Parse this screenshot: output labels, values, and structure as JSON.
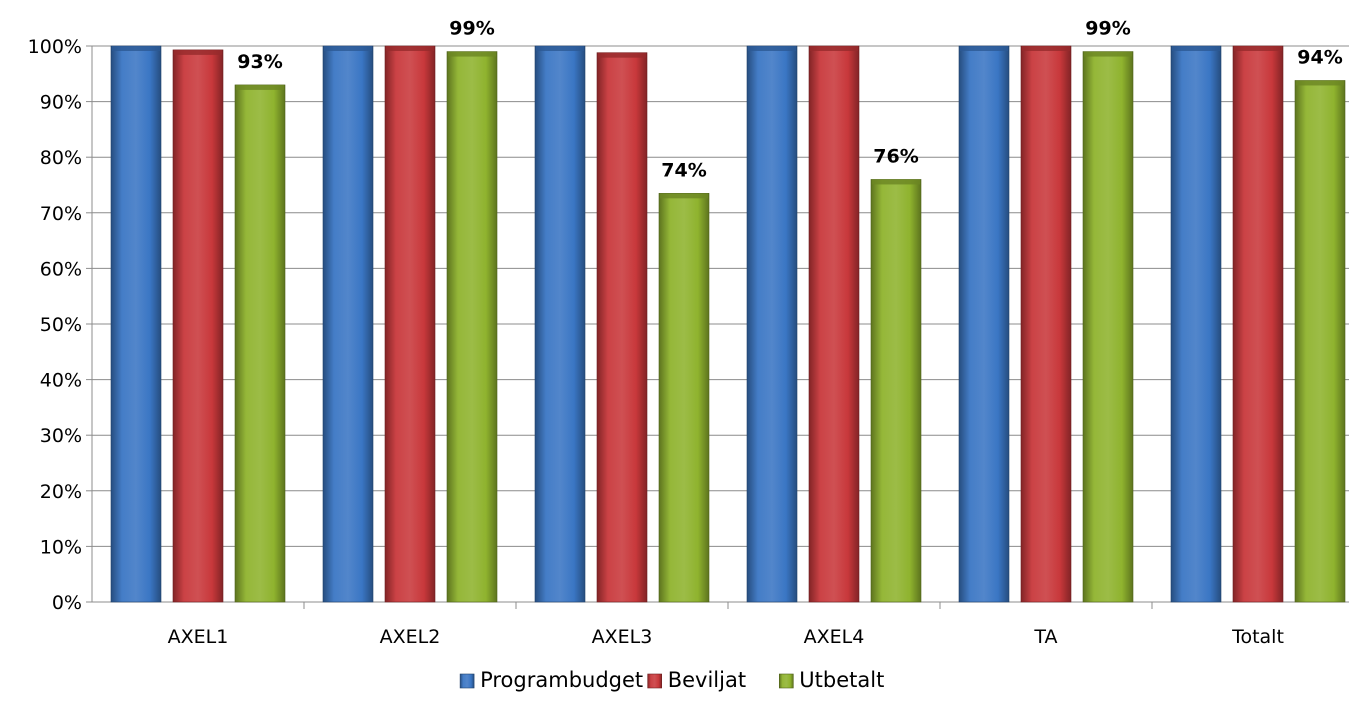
{
  "chart_data": {
    "type": "bar",
    "categories": [
      "AXEL1",
      "AXEL2",
      "AXEL3",
      "AXEL4",
      "TA",
      "Totalt"
    ],
    "series": [
      {
        "name": "Programbudget",
        "values": [
          100,
          100,
          100,
          100,
          100,
          100
        ],
        "color": "#3a76c4"
      },
      {
        "name": "Beviljat",
        "values": [
          99.3,
          100,
          98.8,
          100,
          100,
          100
        ],
        "color": "#c8383b"
      },
      {
        "name": "Utbetalt",
        "values": [
          93,
          99,
          73.5,
          76,
          99,
          93.8
        ],
        "color": "#8fb32e"
      }
    ],
    "data_labels": {
      "series": "Utbetalt",
      "labels": [
        "93%",
        "99%",
        "74%",
        "76%",
        "99%",
        "94%"
      ]
    },
    "ylim": [
      0,
      100
    ],
    "y_ticks": [
      "0%",
      "10%",
      "20%",
      "30%",
      "40%",
      "50%",
      "60%",
      "70%",
      "80%",
      "90%",
      "100%"
    ],
    "title": "",
    "xlabel": "",
    "ylabel": "",
    "grid": true,
    "legend_position": "bottom"
  }
}
